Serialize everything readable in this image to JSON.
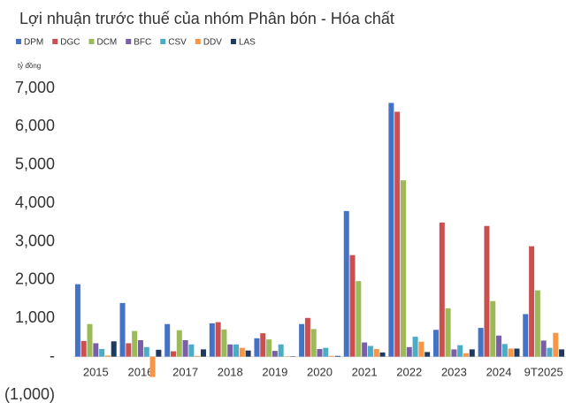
{
  "chart_data": {
    "type": "bar",
    "title": "Lợi nhuận trước thuế của nhóm Phân bón - Hóa chất",
    "y_label": "tỷ đồng",
    "categories": [
      "2015",
      "2016",
      "2017",
      "2018",
      "2019",
      "2020",
      "2021",
      "2022",
      "2023",
      "2024",
      "9T2025"
    ],
    "series": [
      {
        "name": "DPM",
        "color": "#4472c4",
        "values": [
          1890,
          1400,
          850,
          870,
          480,
          850,
          3800,
          6620,
          700,
          750,
          1110
        ]
      },
      {
        "name": "DGC",
        "color": "#c9504f",
        "values": [
          410,
          350,
          140,
          900,
          610,
          1010,
          2650,
          6390,
          3500,
          3410,
          2880
        ]
      },
      {
        "name": "DCM",
        "color": "#9bbb59",
        "values": [
          850,
          670,
          690,
          710,
          450,
          720,
          1970,
          4600,
          1260,
          1450,
          1730
        ]
      },
      {
        "name": "BFC",
        "color": "#7a5fa8",
        "values": [
          350,
          430,
          430,
          320,
          150,
          200,
          370,
          250,
          190,
          550,
          420
        ]
      },
      {
        "name": "CSV",
        "color": "#4bacc6",
        "values": [
          200,
          250,
          320,
          320,
          320,
          230,
          280,
          520,
          300,
          330,
          230
        ]
      },
      {
        "name": "DDV",
        "color": "#f79646",
        "values": [
          30,
          -530,
          20,
          230,
          10,
          20,
          200,
          390,
          90,
          210,
          620
        ]
      },
      {
        "name": "LAS",
        "color": "#1f3a5f",
        "values": [
          400,
          180,
          190,
          160,
          10,
          20,
          110,
          120,
          190,
          210,
          190
        ]
      }
    ],
    "ylim": [
      -1000,
      7000
    ],
    "yticks": [
      {
        "value": -1000,
        "label": "(1,000)"
      },
      {
        "value": 0,
        "label": "-"
      },
      {
        "value": 1000,
        "label": "1,000"
      },
      {
        "value": 2000,
        "label": "2,000"
      },
      {
        "value": 3000,
        "label": "3,000"
      },
      {
        "value": 4000,
        "label": "4,000"
      },
      {
        "value": 5000,
        "label": "5,000"
      },
      {
        "value": 6000,
        "label": "6,000"
      },
      {
        "value": 7000,
        "label": "7,000"
      }
    ],
    "grid": false
  }
}
